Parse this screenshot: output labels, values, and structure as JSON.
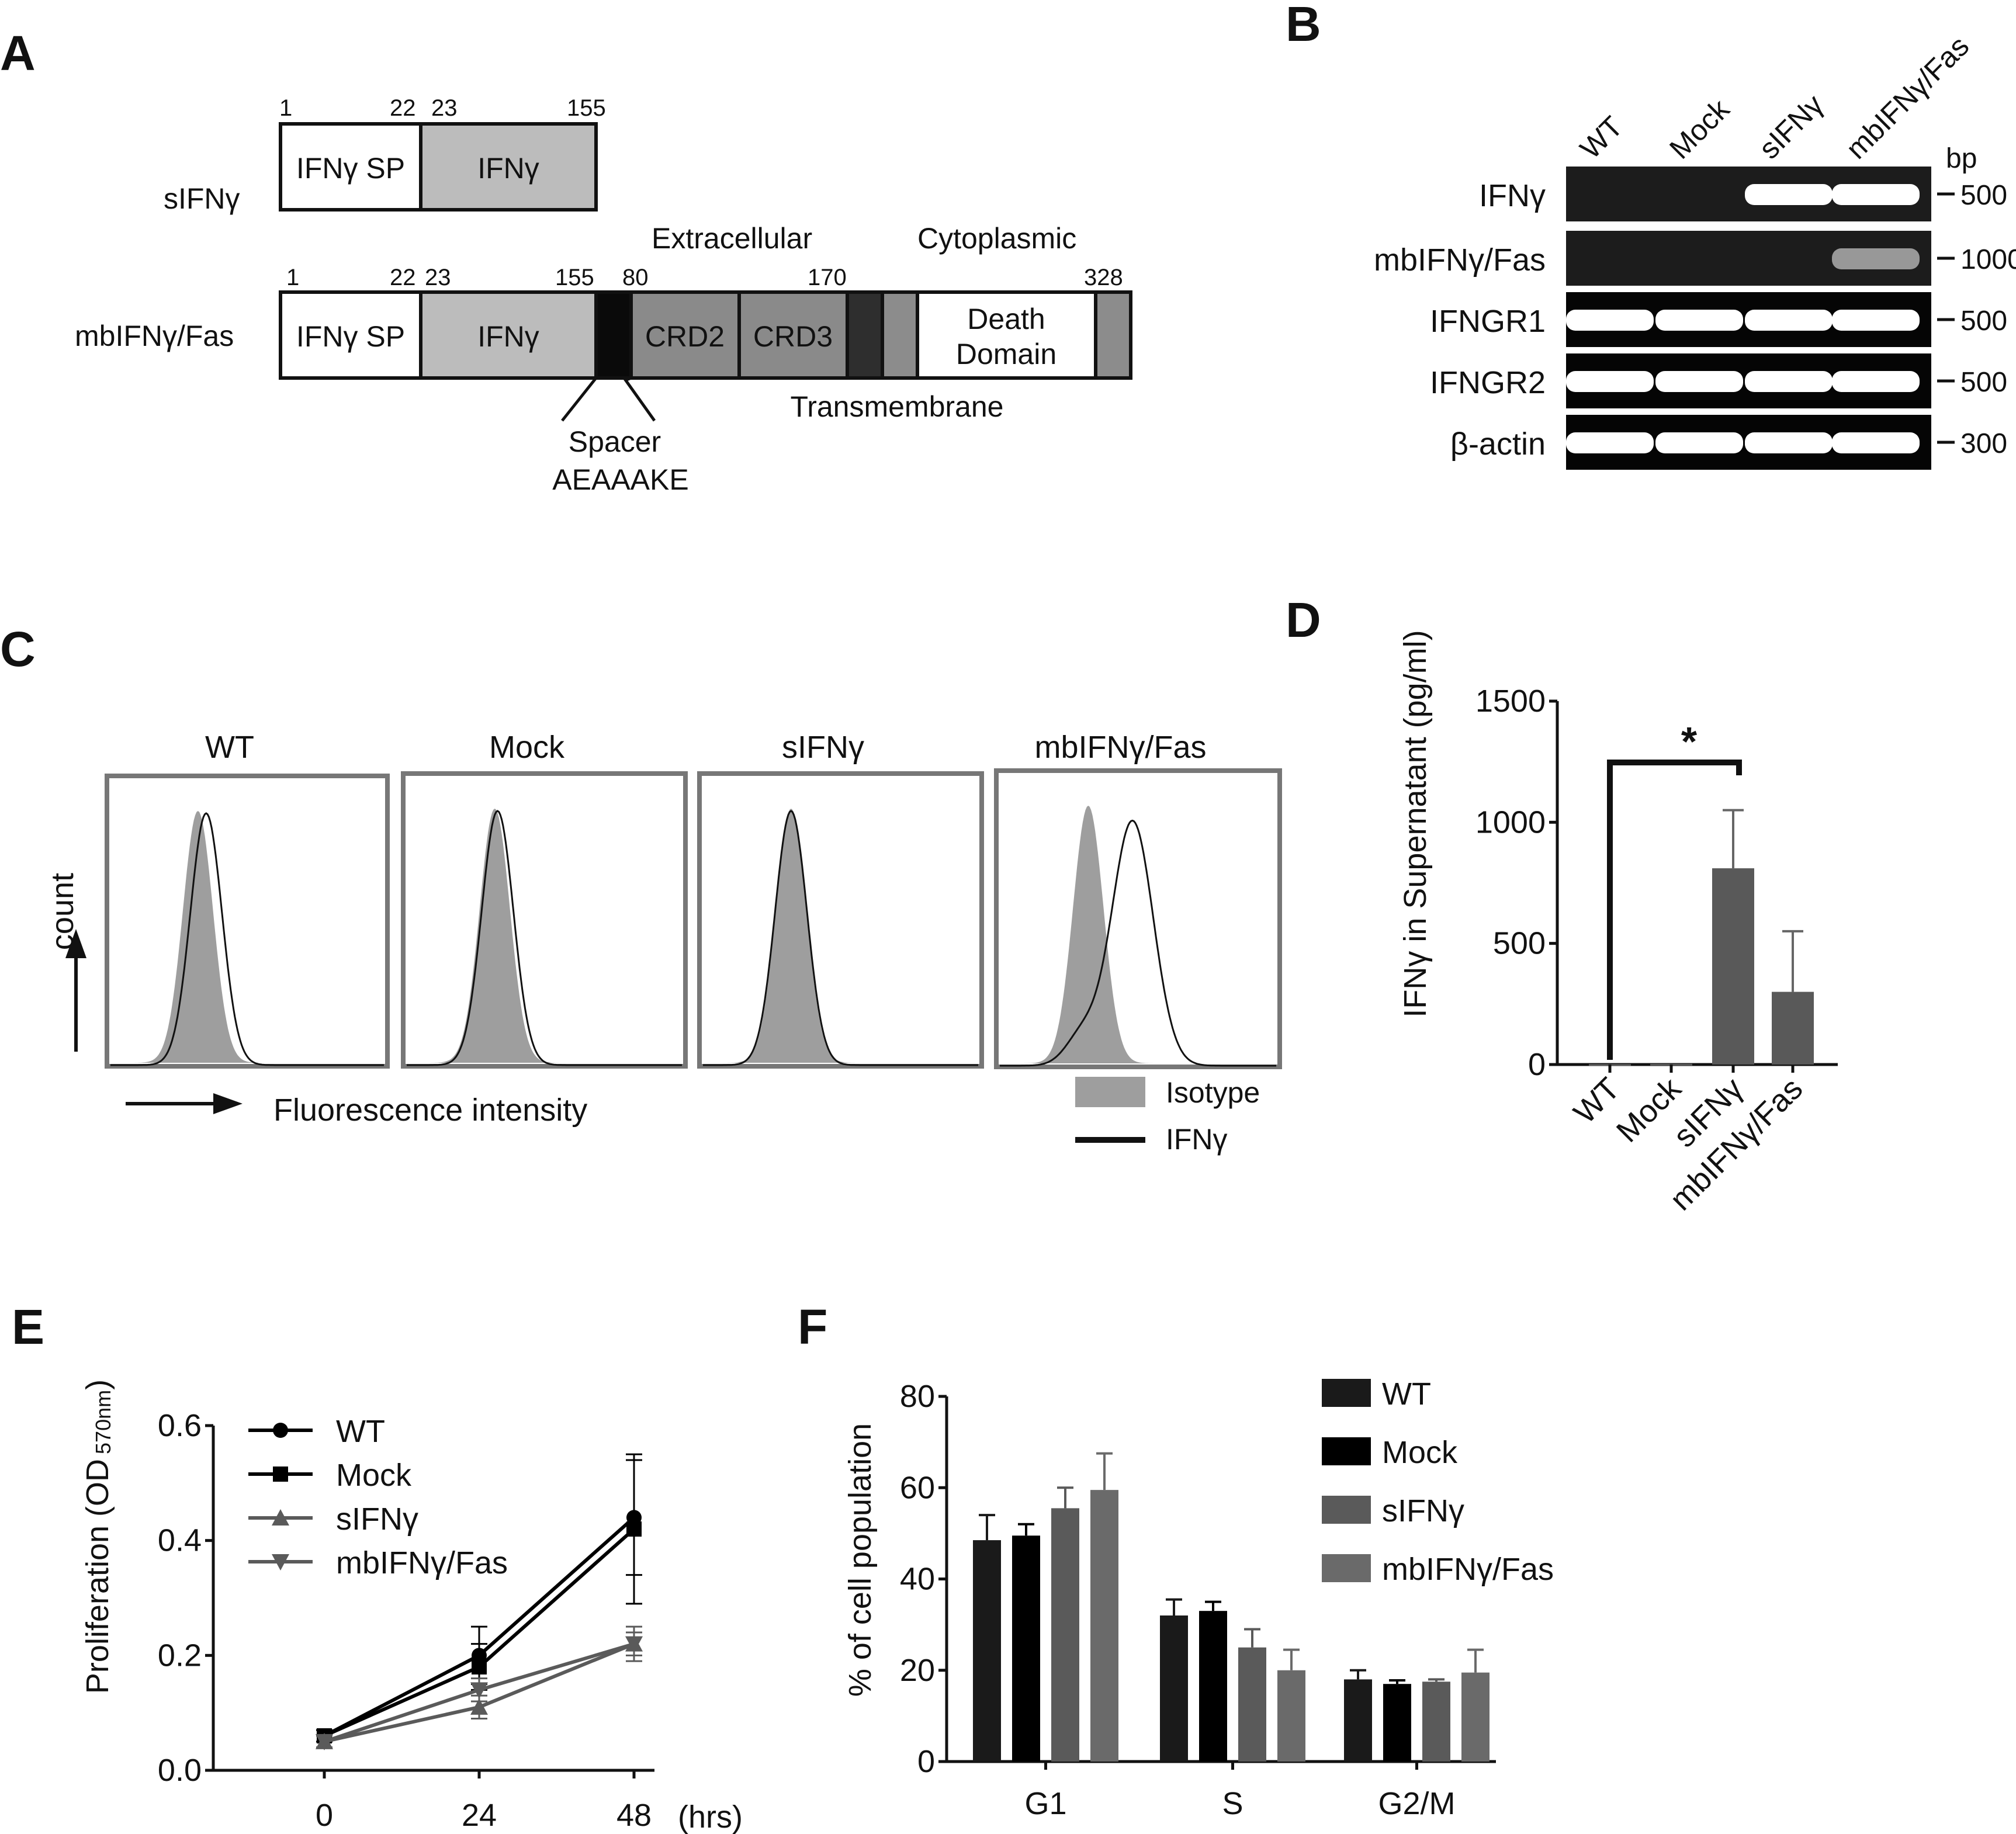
{
  "panels": {
    "a": "A",
    "b": "B",
    "c": "C",
    "d": "D",
    "e": "E",
    "f": "F"
  },
  "panel_a": {
    "sifng": {
      "row_label": "sIFNγ",
      "num_1": "1",
      "num_22": "22",
      "num_23": "23",
      "num_155": "155",
      "seg_sp": "IFNγ SP",
      "seg_ifng": "IFNγ"
    },
    "mbifng": {
      "row_label": "mbIFNγ/Fas",
      "num_1": "1",
      "num_22": "22",
      "num_23": "23",
      "num_155": "155",
      "num_80": "80",
      "num_170": "170",
      "num_328": "328",
      "seg_sp": "IFNγ SP",
      "seg_ifng": "IFNγ",
      "seg_crd2": "CRD2",
      "seg_crd3": "CRD3",
      "seg_death_1": "Death",
      "seg_death_2": "Domain"
    },
    "label_extracellular": "Extracellular",
    "label_cytoplasmic": "Cytoplasmic",
    "label_transmembrane": "Transmembrane",
    "label_spacer": "Spacer",
    "label_spacer_seq": "AEAAAKE",
    "colors": {
      "ifng": "#bcbcbc",
      "crd": "#8a8a8a",
      "spacer": "#0a0a0a",
      "tm": "#2e2e2e",
      "cyto": "#8c8c8c"
    }
  },
  "panel_b": {
    "lanes": [
      "WT",
      "Mock",
      "sIFNγ",
      "mbIFNγ/Fas"
    ],
    "unit": "bp",
    "rows": [
      {
        "name": "IFNγ",
        "marker": "500",
        "bands": [
          0,
          0,
          1,
          1
        ]
      },
      {
        "name": "mbIFNγ/Fas",
        "marker": "1000",
        "bands": [
          0,
          0,
          0,
          0.55
        ]
      },
      {
        "name": "IFNGR1",
        "marker": "500",
        "bands": [
          1,
          1,
          1,
          1
        ]
      },
      {
        "name": "IFNGR2",
        "marker": "500",
        "bands": [
          1,
          1,
          1,
          1
        ]
      },
      {
        "name": "β-actin",
        "marker": "300",
        "bands": [
          1,
          1,
          1,
          1
        ]
      }
    ]
  },
  "panel_c": {
    "titles": [
      "WT",
      "Mock",
      "sIFNγ",
      "mbIFNγ/Fas"
    ],
    "y_label": "count",
    "x_label": "Fluorescence intensity",
    "legend_isotype": "Isotype",
    "legend_ifng": "IFNγ",
    "isotype_color": "#9e9e9e",
    "shift": [
      0.03,
      0.01,
      0.0,
      0.16
    ]
  },
  "chart_data": [
    {
      "type": "bar",
      "panel": "D",
      "ylabel": "IFNγ in Supernatant (pg/ml)",
      "categories": [
        "WT",
        "Mock",
        "sIFNγ",
        "mbIFNγ/Fas"
      ],
      "values": [
        2,
        3,
        810,
        300
      ],
      "errors": [
        0,
        0,
        240,
        250
      ],
      "ylim": [
        0,
        1500
      ],
      "yticks": [
        "0",
        "500",
        "1000",
        "1500"
      ],
      "significance": "*",
      "bar_color": "#595959"
    },
    {
      "type": "line",
      "panel": "E",
      "ylabel": "Proliferation (OD",
      "ylabel_sub": "570nm",
      "ylabel_end": ")",
      "xlabel": "(hrs)",
      "x": [
        0,
        24,
        48
      ],
      "xticks": [
        "0",
        "24",
        "48"
      ],
      "ylim": [
        0,
        0.6
      ],
      "yticks": [
        "0.0",
        "0.2",
        "0.4",
        "0.6"
      ],
      "series": [
        {
          "name": "WT",
          "values": [
            0.06,
            0.2,
            0.44
          ],
          "errors": [
            0.01,
            0.05,
            0.1
          ],
          "color": "#000000",
          "marker": "circle"
        },
        {
          "name": "Mock",
          "values": [
            0.06,
            0.18,
            0.42
          ],
          "errors": [
            0.01,
            0.04,
            0.13
          ],
          "color": "#000000",
          "marker": "square"
        },
        {
          "name": "sIFNγ",
          "values": [
            0.05,
            0.11,
            0.22
          ],
          "errors": [
            0.01,
            0.02,
            0.03
          ],
          "color": "#5a5a5a",
          "marker": "triangle-up"
        },
        {
          "name": "mbIFNγ/Fas",
          "values": [
            0.05,
            0.14,
            0.22
          ],
          "errors": [
            0.01,
            0.02,
            0.02
          ],
          "color": "#5a5a5a",
          "marker": "triangle-down"
        }
      ]
    },
    {
      "type": "bar",
      "panel": "F",
      "ylabel": "% of cell population",
      "categories": [
        "G1",
        "S",
        "G2/M"
      ],
      "ylim": [
        0,
        80
      ],
      "yticks": [
        "0",
        "20",
        "40",
        "60",
        "80"
      ],
      "series": [
        {
          "name": "WT",
          "values": [
            48.5,
            32,
            18
          ],
          "errors": [
            5.5,
            3.5,
            2
          ],
          "color": "#1a1a1a"
        },
        {
          "name": "Mock",
          "values": [
            49.5,
            33,
            17
          ],
          "errors": [
            2.5,
            2,
            0.8
          ],
          "color": "#000000"
        },
        {
          "name": "sIFNγ",
          "values": [
            55.5,
            25,
            17.5
          ],
          "errors": [
            4.5,
            4,
            0.5
          ],
          "color": "#5a5a5a"
        },
        {
          "name": "mbIFNγ/Fas",
          "values": [
            59.5,
            20,
            19.5
          ],
          "errors": [
            8,
            4.5,
            5
          ],
          "color": "#6a6a6a"
        }
      ]
    }
  ]
}
